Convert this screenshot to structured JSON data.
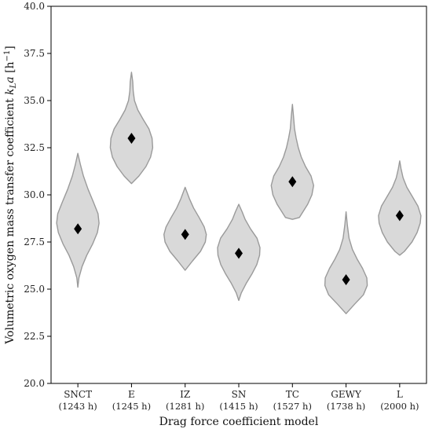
{
  "chart_data": {
    "type": "violin",
    "title": "",
    "xlabel": "Drag force coefficient model",
    "ylabel": "Volumetric oxygen mass transfer coefficient k_L a [h^-1]",
    "ylabel_parts": {
      "prefix": "Volumetric oxygen mass transfer coefficient ",
      "k": "k",
      "sub": "L",
      "a": "a",
      "unit_open": " [h",
      "unit_exp": "−1",
      "unit_close": "]"
    },
    "ylim": [
      20.0,
      40.0
    ],
    "yticks": [
      "20.0",
      "22.5",
      "25.0",
      "27.5",
      "30.0",
      "32.5",
      "35.0",
      "37.5",
      "40.0"
    ],
    "grid": false,
    "colors": {
      "violin_fill": "#d9d9d9",
      "violin_edge": "#9a9a9a",
      "marker": "#000000",
      "axis": "#000000"
    },
    "categories": [
      {
        "name": "SNCT",
        "runtime": "(1243 h)",
        "mean": 28.2,
        "profile": [
          [
            25.1,
            0
          ],
          [
            25.6,
            0.05
          ],
          [
            26.2,
            0.2
          ],
          [
            26.8,
            0.42
          ],
          [
            27.4,
            0.7
          ],
          [
            28.0,
            0.92
          ],
          [
            28.5,
            1.0
          ],
          [
            29.0,
            0.95
          ],
          [
            29.6,
            0.74
          ],
          [
            30.3,
            0.48
          ],
          [
            31.0,
            0.26
          ],
          [
            31.6,
            0.12
          ],
          [
            32.2,
            0
          ]
        ]
      },
      {
        "name": "E",
        "runtime": "(1245 h)",
        "mean": 33.0,
        "profile": [
          [
            30.6,
            0
          ],
          [
            31.0,
            0.35
          ],
          [
            31.5,
            0.68
          ],
          [
            32.0,
            0.9
          ],
          [
            32.5,
            1.0
          ],
          [
            33.0,
            0.97
          ],
          [
            33.5,
            0.82
          ],
          [
            34.0,
            0.55
          ],
          [
            34.5,
            0.3
          ],
          [
            35.0,
            0.14
          ],
          [
            35.5,
            0.08
          ],
          [
            36.0,
            0.06
          ],
          [
            36.5,
            0
          ]
        ]
      },
      {
        "name": "IZ",
        "runtime": "(1281 h)",
        "mean": 27.9,
        "profile": [
          [
            26.0,
            0
          ],
          [
            26.5,
            0.35
          ],
          [
            27.0,
            0.72
          ],
          [
            27.5,
            0.95
          ],
          [
            27.9,
            1.0
          ],
          [
            28.3,
            0.9
          ],
          [
            28.8,
            0.66
          ],
          [
            29.3,
            0.4
          ],
          [
            29.8,
            0.2
          ],
          [
            30.4,
            0
          ]
        ]
      },
      {
        "name": "SN",
        "runtime": "(1415 h)",
        "mean": 26.9,
        "profile": [
          [
            24.4,
            0
          ],
          [
            24.8,
            0.12
          ],
          [
            25.3,
            0.35
          ],
          [
            25.8,
            0.62
          ],
          [
            26.3,
            0.85
          ],
          [
            26.8,
            0.98
          ],
          [
            27.2,
            1.0
          ],
          [
            27.7,
            0.86
          ],
          [
            28.2,
            0.55
          ],
          [
            28.7,
            0.3
          ],
          [
            29.1,
            0.16
          ],
          [
            29.5,
            0
          ]
        ]
      },
      {
        "name": "TC",
        "runtime": "(1527 h)",
        "mean": 30.7,
        "profile": [
          [
            28.7,
            0
          ],
          [
            28.8,
            0.33
          ],
          [
            29.5,
            0.72
          ],
          [
            30.0,
            0.92
          ],
          [
            30.5,
            1.0
          ],
          [
            31.0,
            0.88
          ],
          [
            31.5,
            0.62
          ],
          [
            32.0,
            0.42
          ],
          [
            32.5,
            0.28
          ],
          [
            33.0,
            0.18
          ],
          [
            33.5,
            0.1
          ],
          [
            34.2,
            0.05
          ],
          [
            34.8,
            0
          ]
        ]
      },
      {
        "name": "GEWY",
        "runtime": "(1738 h)",
        "mean": 25.5,
        "profile": [
          [
            23.7,
            0
          ],
          [
            24.2,
            0.4
          ],
          [
            24.7,
            0.82
          ],
          [
            25.2,
            1.0
          ],
          [
            25.6,
            0.98
          ],
          [
            26.1,
            0.78
          ],
          [
            26.6,
            0.52
          ],
          [
            27.1,
            0.3
          ],
          [
            27.7,
            0.14
          ],
          [
            28.4,
            0.06
          ],
          [
            29.1,
            0
          ]
        ]
      },
      {
        "name": "L",
        "runtime": "(2000 h)",
        "mean": 28.9,
        "profile": [
          [
            26.8,
            0
          ],
          [
            27.0,
            0.22
          ],
          [
            27.5,
            0.58
          ],
          [
            28.0,
            0.82
          ],
          [
            28.5,
            0.97
          ],
          [
            28.9,
            1.0
          ],
          [
            29.4,
            0.86
          ],
          [
            29.9,
            0.6
          ],
          [
            30.4,
            0.34
          ],
          [
            30.9,
            0.16
          ],
          [
            31.4,
            0.06
          ],
          [
            31.8,
            0
          ]
        ]
      }
    ]
  }
}
